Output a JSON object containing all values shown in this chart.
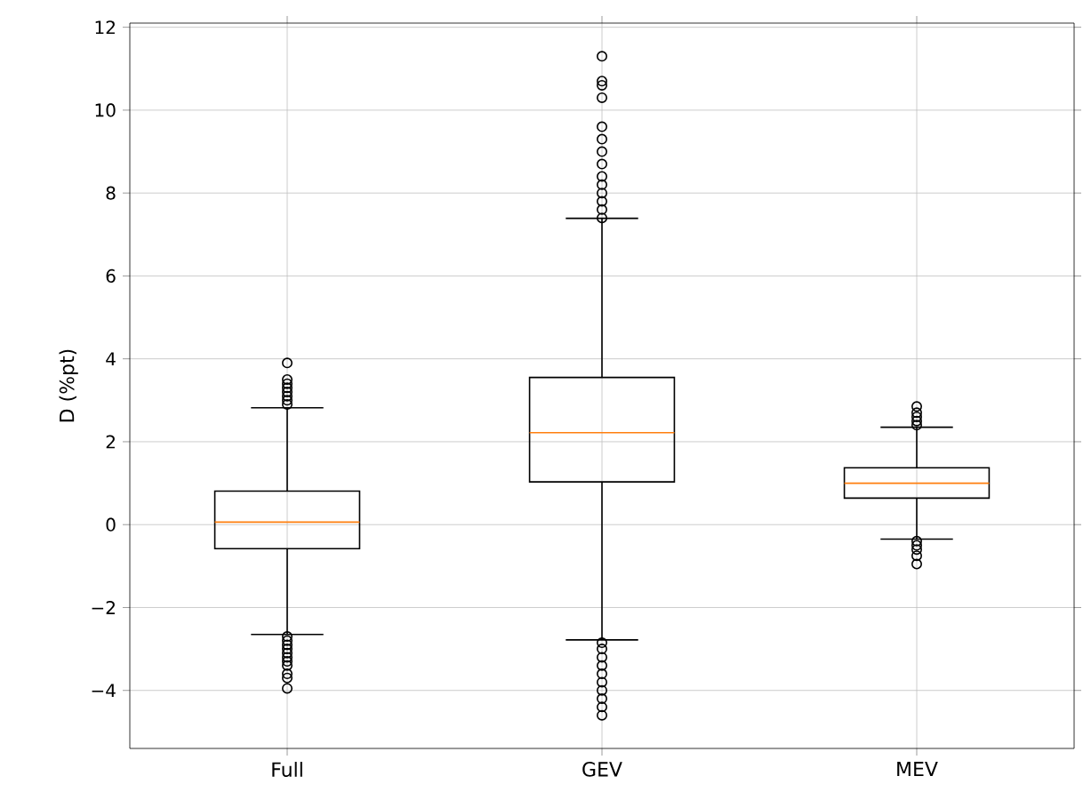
{
  "chart_data": {
    "type": "box",
    "ylabel": "D (%pt)",
    "categories": [
      "Full",
      "GEV",
      "MEV"
    ],
    "color": "#000000",
    "boxes": [
      {
        "low": -2.65,
        "q1": -0.58,
        "median": 0.06,
        "q3": 0.81,
        "high": 2.82,
        "outliers": [
          2.9,
          3.0,
          3.1,
          3.2,
          3.3,
          3.4,
          3.5,
          3.9,
          -2.7,
          -2.8,
          -2.9,
          -3.0,
          -3.1,
          -3.2,
          -3.3,
          -3.4,
          -3.6,
          -3.7,
          -3.95
        ]
      },
      {
        "low": -2.78,
        "q1": 1.03,
        "median": 2.22,
        "q3": 3.55,
        "high": 7.39,
        "outliers": [
          7.4,
          7.6,
          7.8,
          8.0,
          8.2,
          8.4,
          8.7,
          9.0,
          9.3,
          9.6,
          10.3,
          10.6,
          10.7,
          11.3,
          -2.85,
          -3.0,
          -3.2,
          -3.4,
          -3.6,
          -3.8,
          -4.0,
          -4.2,
          -4.4,
          -4.6
        ]
      },
      {
        "low": -0.35,
        "q1": 0.64,
        "median": 1.0,
        "q3": 1.37,
        "high": 2.35,
        "outliers": [
          2.4,
          2.5,
          2.6,
          2.7,
          2.85,
          -0.4,
          -0.5,
          -0.6,
          -0.75,
          -0.95
        ]
      }
    ],
    "ylim": [
      -5.4,
      12.1
    ],
    "yticks": [
      {
        "value": -4,
        "label": "−4"
      },
      {
        "value": -2,
        "label": "−2"
      },
      0,
      2,
      4,
      6,
      8,
      10,
      12
    ],
    "grid": true,
    "marker": "circle"
  }
}
